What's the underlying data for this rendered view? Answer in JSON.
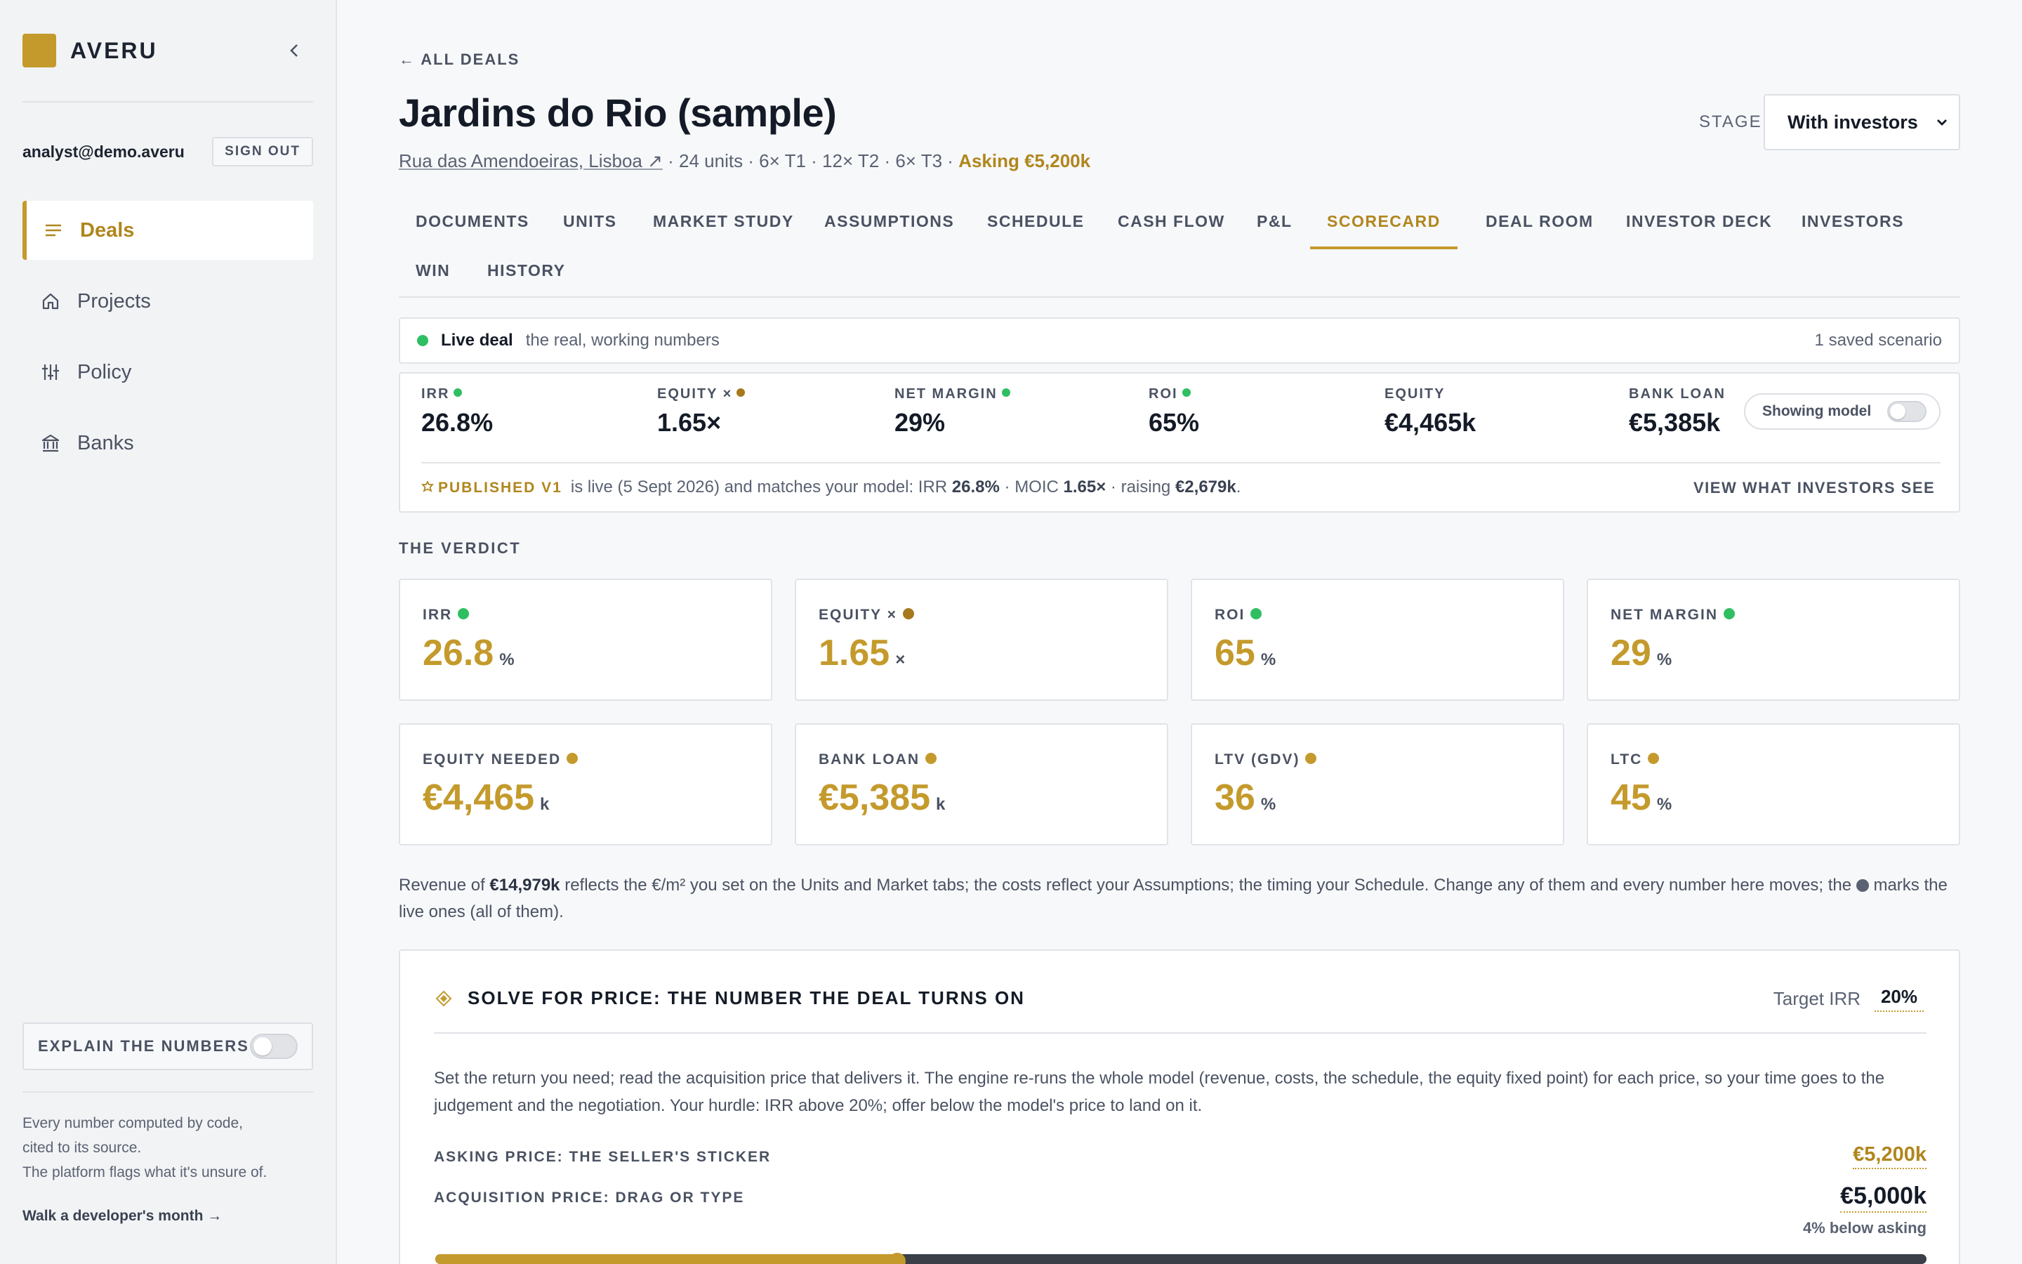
{
  "app": {
    "brand": "AVERU",
    "brand_color": "#c49a2c"
  },
  "sidebar": {
    "user_email": "analyst@demo.averu",
    "sign_out": "SIGN OUT",
    "items": [
      {
        "label": "Deals",
        "icon": "menu-lines-icon",
        "active": true
      },
      {
        "label": "Projects",
        "icon": "home-icon",
        "active": false
      },
      {
        "label": "Policy",
        "icon": "sliders-icon",
        "active": false
      },
      {
        "label": "Banks",
        "icon": "bank-icon",
        "active": false
      }
    ],
    "explain_label": "EXPLAIN THE NUMBERS",
    "explain_on": false,
    "note_line1": "Every number computed by code,",
    "note_line2": "cited to its source.",
    "note_line3": "The platform flags what it's unsure of.",
    "walk_link": "Walk a developer's month →"
  },
  "header": {
    "back_link": "← ALL DEALS",
    "title": "Jardins do Rio (sample)",
    "address": "Rua das Amendoeiras, Lisboa ↗",
    "units_summary": " · 24 units · 6× T1 · 12× T2 · 6× T3 · ",
    "asking": "Asking €5,200k",
    "stage_label": "STAGE",
    "stage_value": "With investors"
  },
  "tabs": [
    {
      "label": "DOCUMENTS",
      "active": false
    },
    {
      "label": "UNITS",
      "active": false
    },
    {
      "label": "MARKET STUDY",
      "active": false
    },
    {
      "label": "ASSUMPTIONS",
      "active": false
    },
    {
      "label": "SCHEDULE",
      "active": false
    },
    {
      "label": "CASH FLOW",
      "active": false
    },
    {
      "label": "P&L",
      "active": false
    },
    {
      "label": "SCORECARD",
      "active": true
    },
    {
      "label": "DEAL ROOM",
      "active": false
    },
    {
      "label": "INVESTOR DECK",
      "active": false
    },
    {
      "label": "INVESTORS",
      "active": false
    },
    {
      "label": "WIN",
      "active": false
    },
    {
      "label": "HISTORY",
      "active": false
    }
  ],
  "live_bar": {
    "title": "Live deal",
    "desc": "the real, working numbers",
    "saved": "1 saved scenario",
    "status_color": "#2fbf62"
  },
  "metrics": {
    "items": [
      {
        "label": "IRR",
        "value": "26.8%",
        "dot": "#2fbf62"
      },
      {
        "label": "EQUITY ×",
        "value": "1.65×",
        "dot": "#a8781d"
      },
      {
        "label": "NET MARGIN",
        "value": "29%",
        "dot": "#2fbf62"
      },
      {
        "label": "ROI",
        "value": "65%",
        "dot": "#2fbf62"
      },
      {
        "label": "EQUITY",
        "value": "€4,465k",
        "dot": ""
      },
      {
        "label": "BANK LOAN",
        "value": "€5,385k",
        "dot": ""
      }
    ],
    "showing_model": "Showing model",
    "published_badge": "PUBLISHED V1",
    "published_text_1": "is live (5 Sept 2026) and matches your model: IRR ",
    "published_irr": "26.8%",
    "published_text_2": " · MOIC ",
    "published_moic": "1.65×",
    "published_text_3": " · raising ",
    "published_raise": "€2,679k",
    "published_text_4": ".",
    "view_investors": "VIEW WHAT INVESTORS SEE"
  },
  "verdict": {
    "heading": "THE VERDICT",
    "cards": [
      {
        "label": "IRR",
        "value": "26.8",
        "unit": "%",
        "dot": "#2fbf62"
      },
      {
        "label": "EQUITY ×",
        "value": "1.65",
        "unit": "×",
        "dot": "#a8781d"
      },
      {
        "label": "ROI",
        "value": "65",
        "unit": "%",
        "dot": "#2fbf62"
      },
      {
        "label": "NET MARGIN",
        "value": "29",
        "unit": "%",
        "dot": "#2fbf62"
      },
      {
        "label": "EQUITY NEEDED",
        "value": "€4,465",
        "unit": "k",
        "dot": "#c49a2c"
      },
      {
        "label": "BANK LOAN",
        "value": "€5,385",
        "unit": "k",
        "dot": "#c49a2c"
      },
      {
        "label": "LTV (GDV)",
        "value": "36",
        "unit": "%",
        "dot": "#c49a2c"
      },
      {
        "label": "LTC",
        "value": "45",
        "unit": "%",
        "dot": "#c49a2c"
      }
    ]
  },
  "revenue_note": {
    "p1": "Revenue of ",
    "revenue": "€14,979k",
    "p2": " reflects the €/m² you set on the Units and Market tabs; the costs reflect your Assumptions; the timing your Schedule. Change any of them and every number here moves; the ",
    "p3": " marks the live ones (all of them)."
  },
  "solve": {
    "title": "SOLVE FOR PRICE: THE NUMBER THE DEAL TURNS ON",
    "target_label": "Target IRR",
    "target_value": "20%",
    "desc": "Set the return you need; read the acquisition price that delivers it. The engine re-runs the whole model (revenue, costs, the schedule, the equity fixed point) for each price, so your time goes to the judgement and the negotiation. Your hurdle: IRR above 20%; offer below the model's price to land on it.",
    "asking_label": "ASKING PRICE: THE SELLER'S STICKER",
    "asking_value": "€5,200k",
    "acq_label": "ACQUISITION PRICE: DRAG OR TYPE",
    "acq_value": "€5,000k",
    "below_asking": "4% below asking",
    "slider_fraction": 0.31
  }
}
